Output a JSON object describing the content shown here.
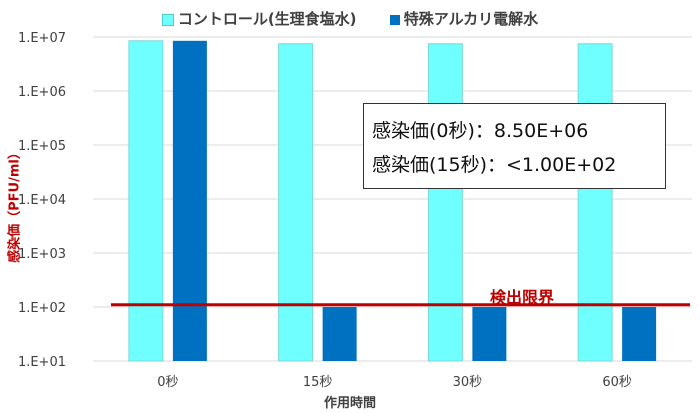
{
  "chart_data": {
    "type": "bar",
    "categories": [
      "0秒",
      "15秒",
      "30秒",
      "60秒"
    ],
    "series": [
      {
        "name": "コントロール(生理食塩水)",
        "values": [
          8500000,
          7500000,
          7500000,
          7500000
        ],
        "color": "#6FFFFF"
      },
      {
        "name": "特殊アルカリ電解水",
        "values": [
          8500000,
          100,
          100,
          100
        ],
        "color": "#0070C0"
      }
    ],
    "title": "",
    "xlabel": "作用時間",
    "ylabel": "感染価（PFU/ml）",
    "yscale": "log",
    "ylim": [
      10,
      10000000
    ],
    "yticks": [
      "1.E+01",
      "1.E+02",
      "1.E+03",
      "1.E+04",
      "1.E+05",
      "1.E+06",
      "1.E+07"
    ],
    "grid": true,
    "legend": "top",
    "reference_line": {
      "label": "検出限界",
      "value": 110,
      "color": "#C00000"
    },
    "annotation": [
      "感染価(0秒)：8.50E+06",
      "感染価(15秒)：<1.00E+02"
    ]
  }
}
